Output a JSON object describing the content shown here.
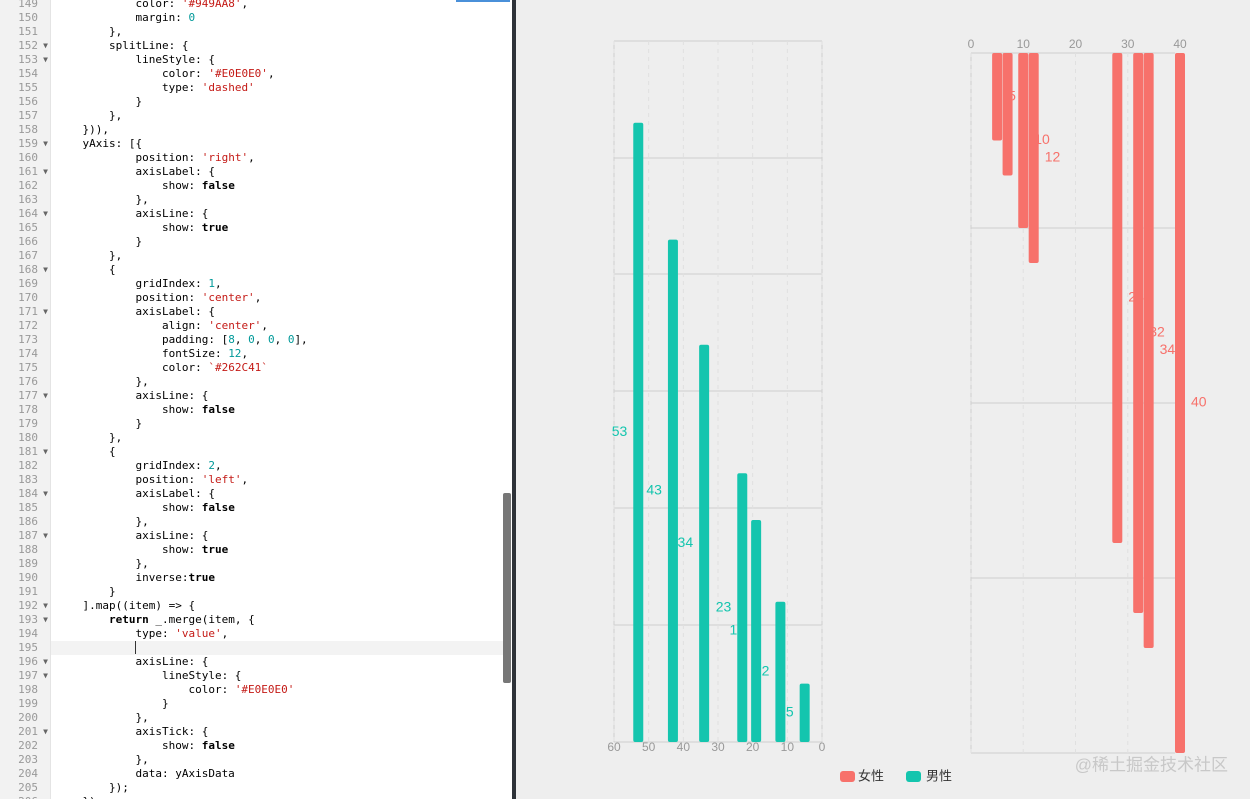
{
  "editor": {
    "lines": [
      {
        "n": 149,
        "code": "            color: '#949AA8',"
      },
      {
        "n": 150,
        "code": "            margin: 0"
      },
      {
        "n": 151,
        "code": "        },"
      },
      {
        "n": 152,
        "code": "        splitLine: {",
        "fold": true
      },
      {
        "n": 153,
        "code": "            lineStyle: {",
        "fold": true
      },
      {
        "n": 154,
        "code": "                color: '#E0E0E0',"
      },
      {
        "n": 155,
        "code": "                type: 'dashed'"
      },
      {
        "n": 156,
        "code": "            }"
      },
      {
        "n": 157,
        "code": "        },"
      },
      {
        "n": 158,
        "code": "    })),"
      },
      {
        "n": 159,
        "code": "    yAxis: [{",
        "fold": true
      },
      {
        "n": 160,
        "code": "            position: 'right',"
      },
      {
        "n": 161,
        "code": "            axisLabel: {",
        "fold": true
      },
      {
        "n": 162,
        "code": "                show: false"
      },
      {
        "n": 163,
        "code": "            },"
      },
      {
        "n": 164,
        "code": "            axisLine: {",
        "fold": true
      },
      {
        "n": 165,
        "code": "                show: true"
      },
      {
        "n": 166,
        "code": "            }"
      },
      {
        "n": 167,
        "code": "        },"
      },
      {
        "n": 168,
        "code": "        {",
        "fold": true
      },
      {
        "n": 169,
        "code": "            gridIndex: 1,"
      },
      {
        "n": 170,
        "code": "            position: 'center',"
      },
      {
        "n": 171,
        "code": "            axisLabel: {",
        "fold": true
      },
      {
        "n": 172,
        "code": "                align: 'center',"
      },
      {
        "n": 173,
        "code": "                padding: [8, 0, 0, 0],"
      },
      {
        "n": 174,
        "code": "                fontSize: 12,"
      },
      {
        "n": 175,
        "code": "                color: `#262C41`"
      },
      {
        "n": 176,
        "code": "            },"
      },
      {
        "n": 177,
        "code": "            axisLine: {",
        "fold": true
      },
      {
        "n": 178,
        "code": "                show: false"
      },
      {
        "n": 179,
        "code": "            }"
      },
      {
        "n": 180,
        "code": "        },"
      },
      {
        "n": 181,
        "code": "        {",
        "fold": true
      },
      {
        "n": 182,
        "code": "            gridIndex: 2,"
      },
      {
        "n": 183,
        "code": "            position: 'left',"
      },
      {
        "n": 184,
        "code": "            axisLabel: {",
        "fold": true
      },
      {
        "n": 185,
        "code": "                show: false"
      },
      {
        "n": 186,
        "code": "            },"
      },
      {
        "n": 187,
        "code": "            axisLine: {",
        "fold": true
      },
      {
        "n": 188,
        "code": "                show: true"
      },
      {
        "n": 189,
        "code": "            },"
      },
      {
        "n": 190,
        "code": "            inverse:true"
      },
      {
        "n": 191,
        "code": "        }"
      },
      {
        "n": 192,
        "code": "    ].map((item) => {",
        "fold": true
      },
      {
        "n": 193,
        "code": "        return _.merge(item, {",
        "fold": true
      },
      {
        "n": 194,
        "code": "            type: 'value',"
      },
      {
        "n": 195,
        "current": true
      },
      {
        "n": 196,
        "code": "            axisLine: {",
        "fold": true
      },
      {
        "n": 197,
        "code": "                lineStyle: {",
        "fold": true
      },
      {
        "n": 198,
        "code": "                    color: '#E0E0E0'"
      },
      {
        "n": 199,
        "code": "                }"
      },
      {
        "n": 200,
        "code": "            },"
      },
      {
        "n": 201,
        "code": "            axisTick: {",
        "fold": true
      },
      {
        "n": 202,
        "code": "                show: false"
      },
      {
        "n": 203,
        "code": "            },"
      },
      {
        "n": 204,
        "code": "            data: yAxisData"
      },
      {
        "n": 205,
        "code": "        });"
      },
      {
        "n": 206,
        "code": "    })"
      }
    ]
  },
  "chart_data": [
    {
      "type": "bar",
      "series": [
        {
          "name": "男性",
          "color": "#14c5ae",
          "values": [
            53,
            43,
            34,
            23,
            19,
            12,
            5
          ]
        }
      ],
      "xlim": [
        60,
        0
      ],
      "xticks": [
        60,
        50,
        40,
        30,
        20,
        10,
        0
      ]
    },
    {
      "type": "bar",
      "series": [
        {
          "name": "女性",
          "color": "#f7716b",
          "values": [
            5,
            7,
            10,
            12,
            28,
            32,
            34,
            40
          ]
        }
      ],
      "xlim": [
        0,
        40
      ],
      "xticks": [
        0,
        10,
        20,
        30,
        40
      ]
    }
  ],
  "watermark": "@稀土掘金技术社区"
}
